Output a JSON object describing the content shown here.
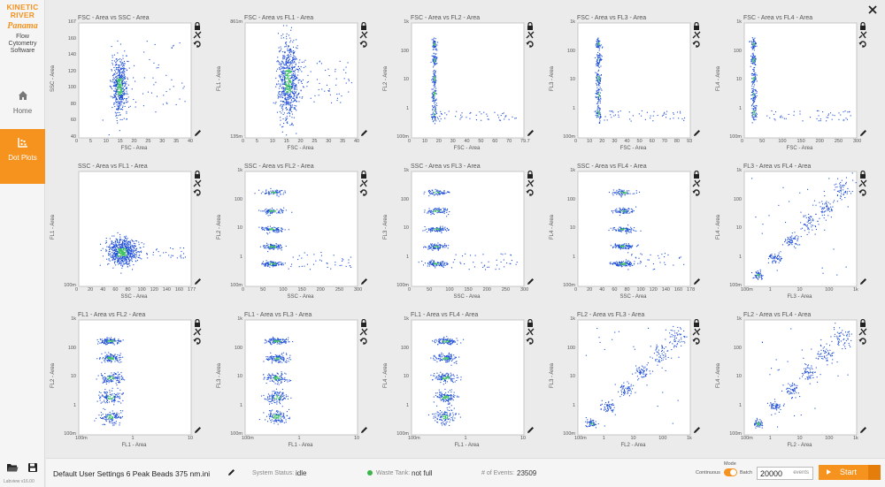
{
  "app": {
    "logo_line1": "KINETIC",
    "logo_line2": "RIVER",
    "product": "Panama",
    "subtitle_1": "Flow",
    "subtitle_2": "Cytometry",
    "subtitle_3": "Software",
    "version": "Labview v16.00"
  },
  "nav": [
    {
      "label": "Home",
      "icon": "home-icon",
      "active": false
    },
    {
      "label": "Dot Plots",
      "icon": "scatter-icon",
      "active": true
    }
  ],
  "bottom": {
    "settings_file": "Default User Settings 6 Peak Beads 375 nm.ini",
    "status_label": "System Status:",
    "status_value": "idle",
    "waste_label": "Waste Tank:",
    "waste_value": "not full",
    "events_label": "# of Events:",
    "events_value": "23509",
    "mode_label": "Mode",
    "mode_left": "Continuous",
    "mode_right": "Batch",
    "batch_events": "20000",
    "batch_unit": "events",
    "start_label": "Start"
  },
  "colors": {
    "accent": "#f6921e",
    "point": "#1f4fd8",
    "dense": "#3fc060",
    "waste_ok": "#3ab54a"
  },
  "plots": [
    {
      "title": "FSC - Area vs SSC - Area",
      "xlabel": "FSC - Area",
      "ylabel": "SSC - Area",
      "yscale": "linear",
      "xticks": [
        "0",
        "5",
        "10",
        "15",
        "20",
        "25",
        "30",
        "35",
        "40"
      ],
      "yticks": [
        "167",
        "160",
        "140",
        "120",
        "100",
        "80",
        "60",
        "40"
      ],
      "pattern": "blob",
      "cx": 0.36,
      "cy": 0.55
    },
    {
      "title": "FSC - Area vs FL1 - Area",
      "xlabel": "FSC - Area",
      "ylabel": "FL1 - Area",
      "yscale": "log",
      "xticks": [
        "0",
        "5",
        "10",
        "15",
        "20",
        "25",
        "30",
        "35",
        "40"
      ],
      "yticks": [
        "861m",
        "135m"
      ],
      "pattern": "vblob",
      "cx": 0.38,
      "cy": 0.5
    },
    {
      "title": "FSC - Area vs FL2 - Area",
      "xlabel": "FSC - Area",
      "ylabel": "FL2 - Area",
      "yscale": "log",
      "xticks": [
        "0",
        "10",
        "20",
        "30",
        "40",
        "50",
        "60",
        "70",
        "79.7"
      ],
      "yticks": [
        "1k",
        "100",
        "10",
        "1",
        "100m"
      ],
      "pattern": "vstack",
      "cx": 0.2
    },
    {
      "title": "FSC - Area vs FL3 - Area",
      "xlabel": "FSC - Area",
      "ylabel": "FL3 - Area",
      "yscale": "log",
      "xticks": [
        "0",
        "10",
        "20",
        "30",
        "40",
        "50",
        "60",
        "70",
        "80",
        "93"
      ],
      "yticks": [
        "1k",
        "100",
        "10",
        "1",
        "100m"
      ],
      "pattern": "vstack",
      "cx": 0.18
    },
    {
      "title": "FSC - Area vs FL4 - Area",
      "xlabel": "FSC - Area",
      "ylabel": "FL4 - Area",
      "yscale": "log",
      "xticks": [
        "0",
        "50",
        "100",
        "150",
        "200",
        "250",
        "300"
      ],
      "yticks": [
        "1k",
        "100",
        "10",
        "1",
        "100m"
      ],
      "pattern": "vstack",
      "cx": 0.08
    },
    {
      "title": "SSC - Area vs FL1 - Area",
      "xlabel": "SSC - Area",
      "ylabel": "FL1 - Area",
      "yscale": "log",
      "xticks": [
        "0",
        "20",
        "40",
        "60",
        "80",
        "100",
        "120",
        "140",
        "160",
        "177"
      ],
      "yticks": [
        "100m"
      ],
      "pattern": "hblob",
      "cx": 0.38,
      "cy": 0.65
    },
    {
      "title": "SSC - Area vs FL2 - Area",
      "xlabel": "SSC - Area",
      "ylabel": "FL2 - Area",
      "yscale": "log",
      "xticks": [
        "0",
        "50",
        "100",
        "150",
        "200",
        "250",
        "300"
      ],
      "yticks": [
        "1k",
        "100",
        "10",
        "1",
        "100m"
      ],
      "pattern": "hstack",
      "cx": 0.22
    },
    {
      "title": "SSC - Area vs FL3 - Area",
      "xlabel": "SSC - Area",
      "ylabel": "FL3 - Area",
      "yscale": "log",
      "xticks": [
        "0",
        "50",
        "100",
        "150",
        "200",
        "250",
        "300"
      ],
      "yticks": [
        "1k",
        "100",
        "10",
        "1",
        "100m"
      ],
      "pattern": "hstack",
      "cx": 0.2
    },
    {
      "title": "SSC - Area vs FL4 - Area",
      "xlabel": "SSC - Area",
      "ylabel": "FL4 - Area",
      "yscale": "log",
      "xticks": [
        "0",
        "20",
        "40",
        "60",
        "80",
        "100",
        "120",
        "140",
        "160",
        "178"
      ],
      "yticks": [
        "1k",
        "100",
        "10",
        "1",
        "100m"
      ],
      "pattern": "hstack",
      "cx": 0.38
    },
    {
      "title": "FL3 - Area vs FL4 - Area",
      "xlabel": "FL3 - Area",
      "ylabel": "FL4 - Area",
      "yscale": "log",
      "xticks": [
        "100m",
        "1",
        "10",
        "100",
        "1k"
      ],
      "yticks": [
        "1k",
        "100",
        "10",
        "1",
        "100m"
      ],
      "pattern": "diag"
    },
    {
      "title": "FL1 - Area vs FL2 - Area",
      "xlabel": "FL1 - Area",
      "ylabel": "FL2 - Area",
      "yscale": "log",
      "xticks": [
        "100m",
        "1",
        "10"
      ],
      "yticks": [
        "1k",
        "100",
        "10",
        "1",
        "100m"
      ],
      "pattern": "vstack2",
      "cx": 0.28
    },
    {
      "title": "FL1 - Area vs FL3 - Area",
      "xlabel": "FL1 - Area",
      "ylabel": "FL3 - Area",
      "yscale": "log",
      "xticks": [
        "100m",
        "1",
        "10"
      ],
      "yticks": [
        "1k",
        "100",
        "10",
        "1",
        "100m"
      ],
      "pattern": "vstack2",
      "cx": 0.28
    },
    {
      "title": "FL1 - Area vs FL4 - Area",
      "xlabel": "FL1 - Area",
      "ylabel": "FL4 - Area",
      "yscale": "log",
      "xticks": [
        "100m",
        "1",
        "10"
      ],
      "yticks": [
        "1k",
        "100",
        "10",
        "1",
        "100m"
      ],
      "pattern": "vstack2",
      "cx": 0.3
    },
    {
      "title": "FL2 - Area vs FL3 - Area",
      "xlabel": "FL2 - Area",
      "ylabel": "FL3 - Area",
      "yscale": "log",
      "xticks": [
        "100m",
        "1",
        "10",
        "100",
        "1k"
      ],
      "yticks": [
        "1k",
        "100",
        "10",
        "1",
        "100m"
      ],
      "pattern": "diag"
    },
    {
      "title": "FL2 - Area vs FL4 - Area",
      "xlabel": "FL2 - Area",
      "ylabel": "FL4 - Area",
      "yscale": "log",
      "xticks": [
        "100m",
        "1",
        "10",
        "100",
        "1k"
      ],
      "yticks": [
        "1k",
        "100",
        "10",
        "1",
        "100m"
      ],
      "pattern": "diag"
    }
  ]
}
